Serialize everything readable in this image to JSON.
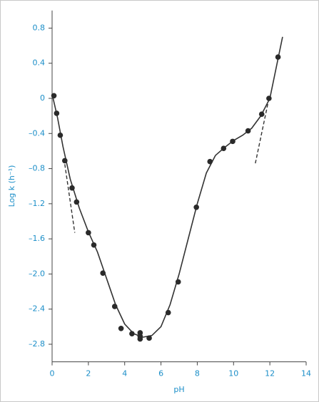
{
  "chart_data": {
    "type": "scatter",
    "x_label": "pH",
    "y_label": "Log k (h⁻¹)",
    "xlim": [
      0,
      14
    ],
    "ylim": [
      -3.0,
      1.0
    ],
    "xticks": [
      0,
      2,
      4,
      6,
      8,
      10,
      12,
      14
    ],
    "yticks": [
      0.8,
      0.4,
      0,
      {
        "value": -0.4,
        "label": "–0.4"
      },
      {
        "value": -0.8,
        "label": "–0.8"
      },
      {
        "value": -1.2,
        "label": "–1.2"
      },
      {
        "value": -1.6,
        "label": "–1.6"
      },
      {
        "value": -2.0,
        "label": "–2.0"
      },
      {
        "value": -2.4,
        "label": "–2.4"
      },
      {
        "value": -2.8,
        "label": "–2.8"
      }
    ],
    "series": [
      {
        "type": "line",
        "style": "solid",
        "color": "#333333",
        "x": [
          0,
          0.3,
          0.6,
          1,
          1.5,
          2,
          2.5,
          3,
          3.5,
          4,
          4.5,
          5,
          5.5,
          6,
          6.5,
          7,
          7.5,
          8,
          8.5,
          9,
          9.5,
          10,
          10.5,
          11,
          11.5,
          12,
          12.4,
          12.7
        ],
        "values": [
          0.05,
          -0.22,
          -0.55,
          -0.92,
          -1.25,
          -1.52,
          -1.75,
          -2.05,
          -2.35,
          -2.57,
          -2.68,
          -2.72,
          -2.7,
          -2.6,
          -2.35,
          -2.0,
          -1.6,
          -1.2,
          -0.85,
          -0.65,
          -0.56,
          -0.48,
          -0.42,
          -0.34,
          -0.2,
          0.0,
          0.4,
          0.7
        ]
      },
      {
        "type": "line",
        "style": "dashed",
        "color": "#333333",
        "x": [
          0.7,
          1.25
        ],
        "values": [
          -0.75,
          -1.53
        ]
      },
      {
        "type": "line",
        "style": "dashed",
        "color": "#333333",
        "x": [
          11.2,
          11.9
        ],
        "values": [
          -0.74,
          -0.05
        ]
      },
      {
        "type": "points",
        "color": "#2a2a2a",
        "x": [
          0.1,
          0.25,
          0.45,
          0.7,
          1.1,
          1.35,
          2.0,
          2.3,
          2.8,
          3.45,
          3.8,
          4.4,
          4.85,
          4.85,
          4.85,
          5.35,
          6.4,
          6.95,
          7.95,
          8.7,
          9.45,
          9.95,
          10.8,
          11.55,
          11.95,
          12.45
        ],
        "values": [
          0.03,
          -0.17,
          -0.42,
          -0.71,
          -1.02,
          -1.18,
          -1.53,
          -1.67,
          -1.99,
          -2.37,
          -2.62,
          -2.68,
          -2.67,
          -2.71,
          -2.74,
          -2.73,
          -2.44,
          -2.09,
          -1.24,
          -0.72,
          -0.57,
          -0.49,
          -0.37,
          -0.18,
          0.0,
          0.47
        ]
      }
    ]
  }
}
